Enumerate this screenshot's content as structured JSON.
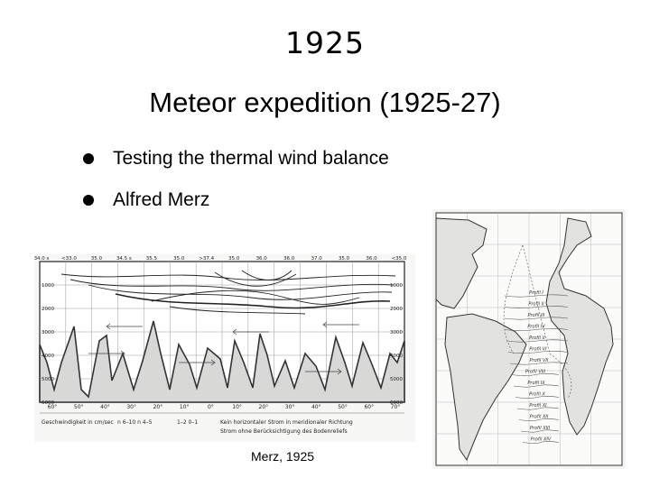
{
  "slide": {
    "year": "1925",
    "title": "Meteor expedition (1925-27)",
    "bullets": [
      "Testing the thermal wind balance",
      "Alfred Merz"
    ],
    "caption": "Merz, 1925"
  },
  "section": {
    "top_labels": [
      "34.0 s",
      "<33.0",
      "35.0",
      "34.5 s",
      "35.5",
      "35.0",
      ">37.4",
      "35.0",
      "36.0",
      "36.0",
      "37.0",
      "35.0",
      "36.0",
      "<35.0"
    ],
    "depth_labels": [
      "1000",
      "2000",
      "3000",
      "4000",
      "5000",
      "6000"
    ],
    "lat_labels": [
      "60°",
      "50°",
      "40°",
      "30°",
      "20°",
      "10°",
      "0°",
      "10°",
      "20°",
      "30°",
      "40°",
      "50°",
      "60°",
      "70°"
    ],
    "legend": [
      "Geschwindigkeit in cm/sec",
      "n 6–10   n 4–5",
      "1–2   0–1",
      "Kein horizontaler Strom in meridionaler Richtung",
      "Strom ohne Berücksichtigung des Bodenreliefs"
    ]
  },
  "map": {
    "profiles": [
      "Profil I",
      "Profil II",
      "Profil III",
      "Profil IV",
      "Profil V",
      "Profil VI",
      "Profil VII",
      "Profil VIII",
      "Profil IX",
      "Profil X",
      "Profil XI",
      "Profil XII",
      "Profil XIII",
      "Profil XIV"
    ]
  },
  "colors": {
    "text": "#000000",
    "ink": "#2a2a2a",
    "background": "#ffffff",
    "paper": "#f4f4f2"
  }
}
